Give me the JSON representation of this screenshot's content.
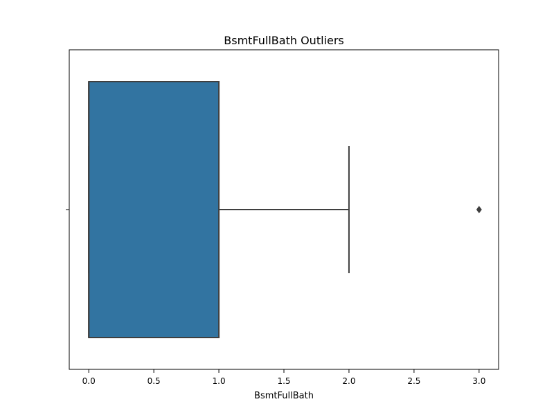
{
  "chart_data": {
    "type": "box",
    "title": "BsmtFullBath Outliers",
    "xlabel": "BsmtFullBath",
    "ylabel": "",
    "xlim": [
      -0.15,
      3.15
    ],
    "xticks": [
      0.0,
      0.5,
      1.0,
      1.5,
      2.0,
      2.5,
      3.0
    ],
    "xtick_labels": [
      "0.0",
      "0.5",
      "1.0",
      "1.5",
      "2.0",
      "2.5",
      "3.0"
    ],
    "box": {
      "q1": 0.0,
      "median": 0.0,
      "q3": 1.0,
      "whisker_low": 0.0,
      "whisker_high": 2.0,
      "outliers": [
        3.0
      ]
    },
    "colors": {
      "box_fill": "#3274a1",
      "line": "#3f3f3f",
      "axis": "#000000"
    }
  }
}
